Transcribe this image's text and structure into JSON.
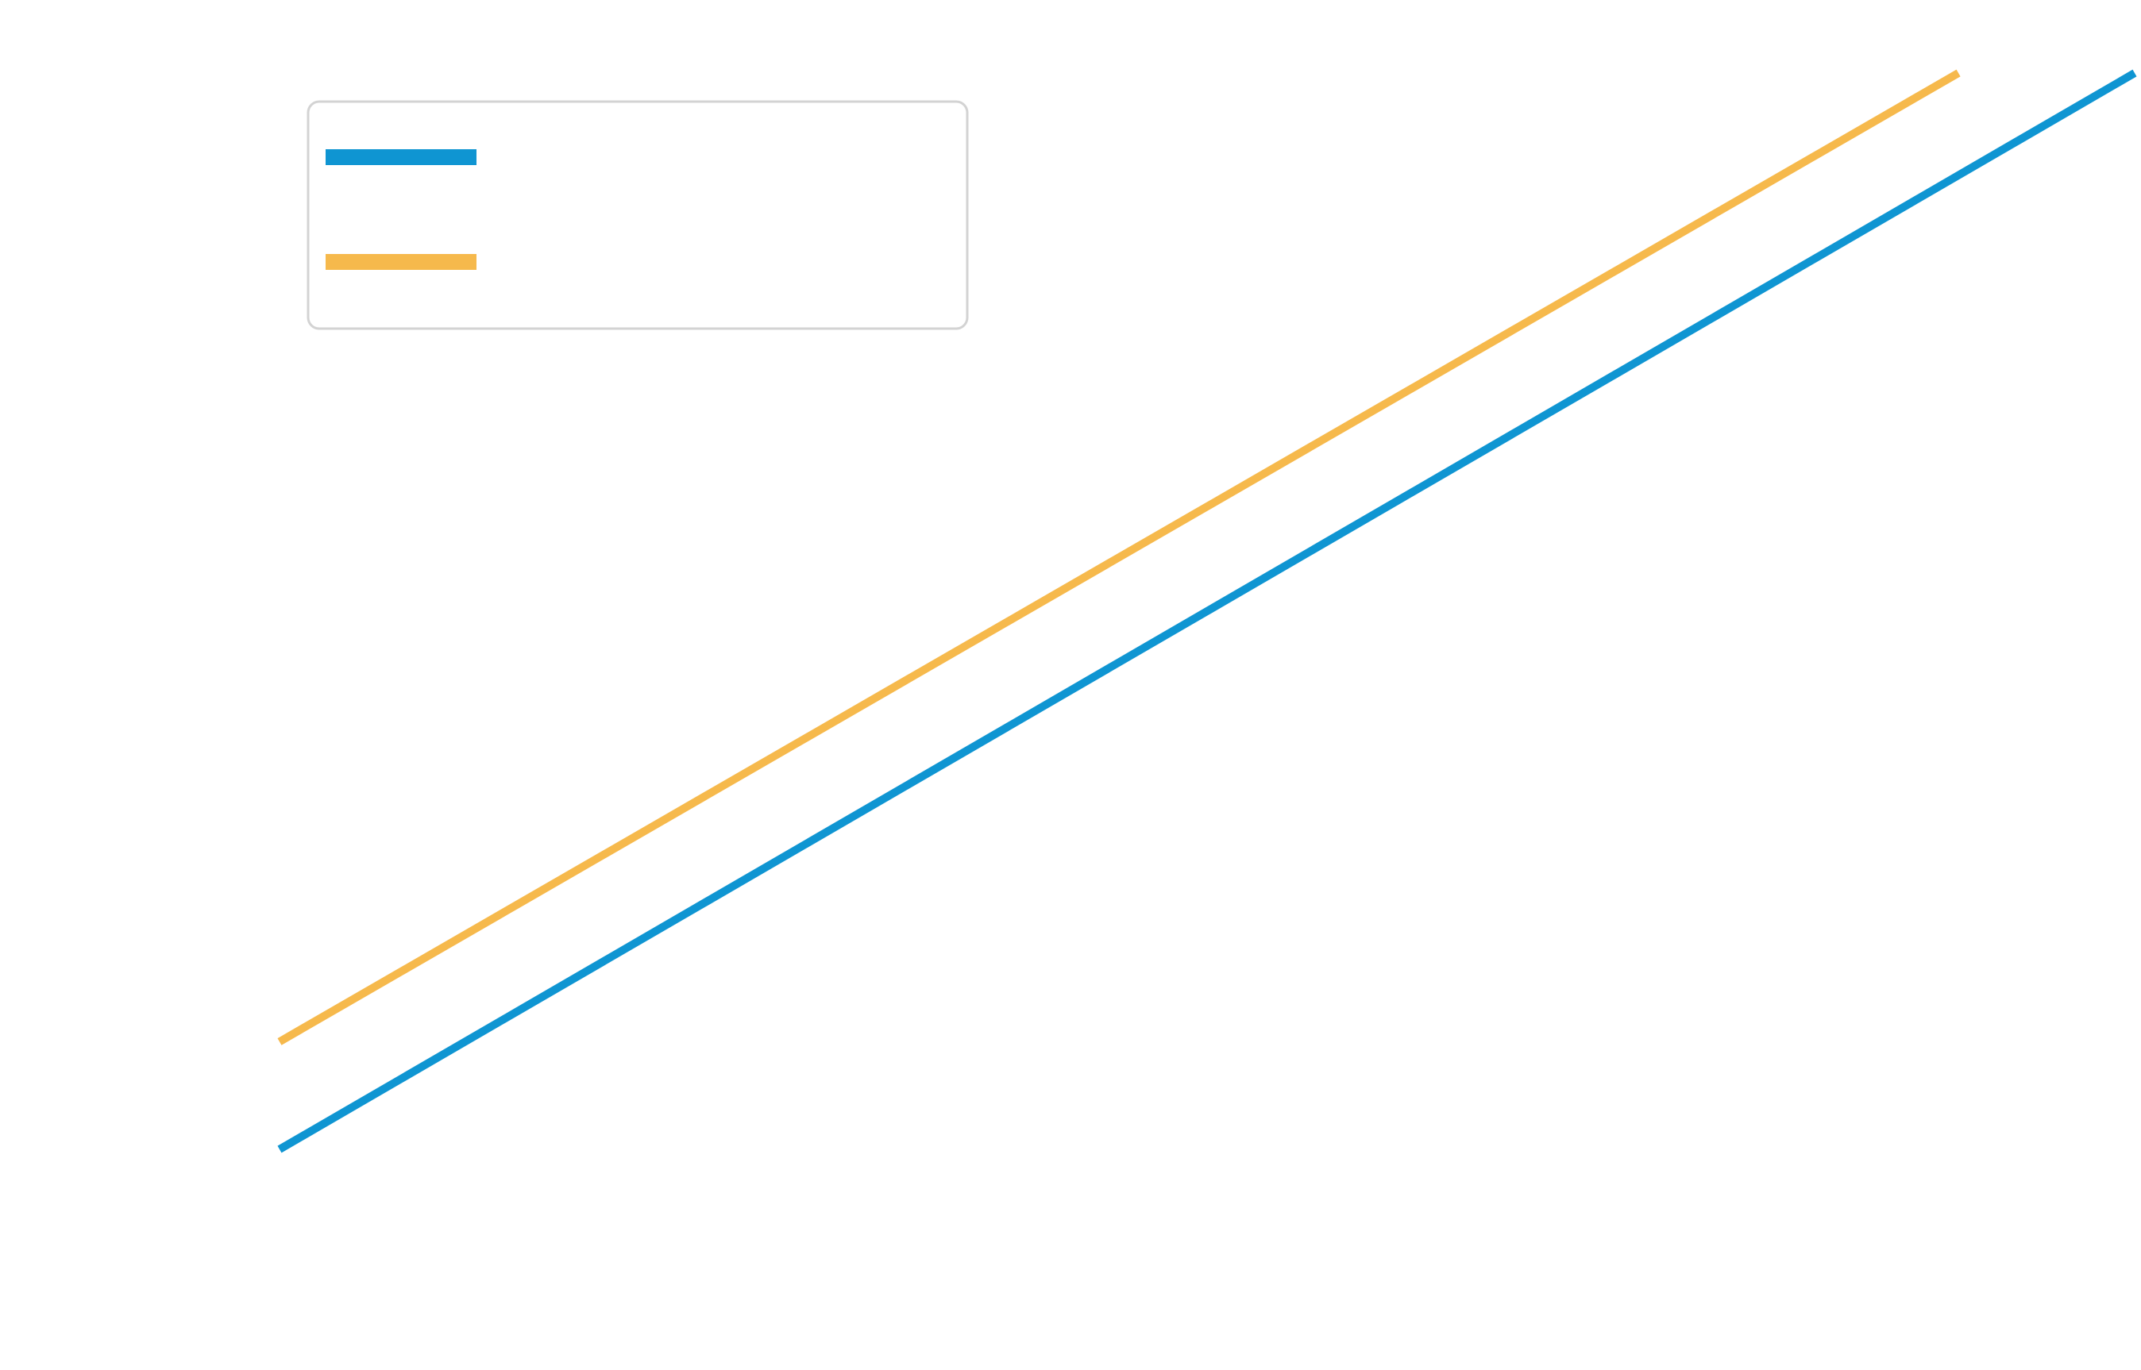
{
  "chart_data": {
    "type": "line",
    "title": "",
    "xlabel": "",
    "ylabel": "",
    "x": [
      0,
      1
    ],
    "xlim": [
      0,
      1
    ],
    "ylim": [
      0,
      1
    ],
    "grid": false,
    "legend_position": "top-left",
    "series": [
      {
        "color": "#0F95D2",
        "values": [
          0.0,
          1.0
        ]
      },
      {
        "color": "#F6B94C",
        "values": [
          0.1,
          1.0
        ]
      }
    ]
  }
}
